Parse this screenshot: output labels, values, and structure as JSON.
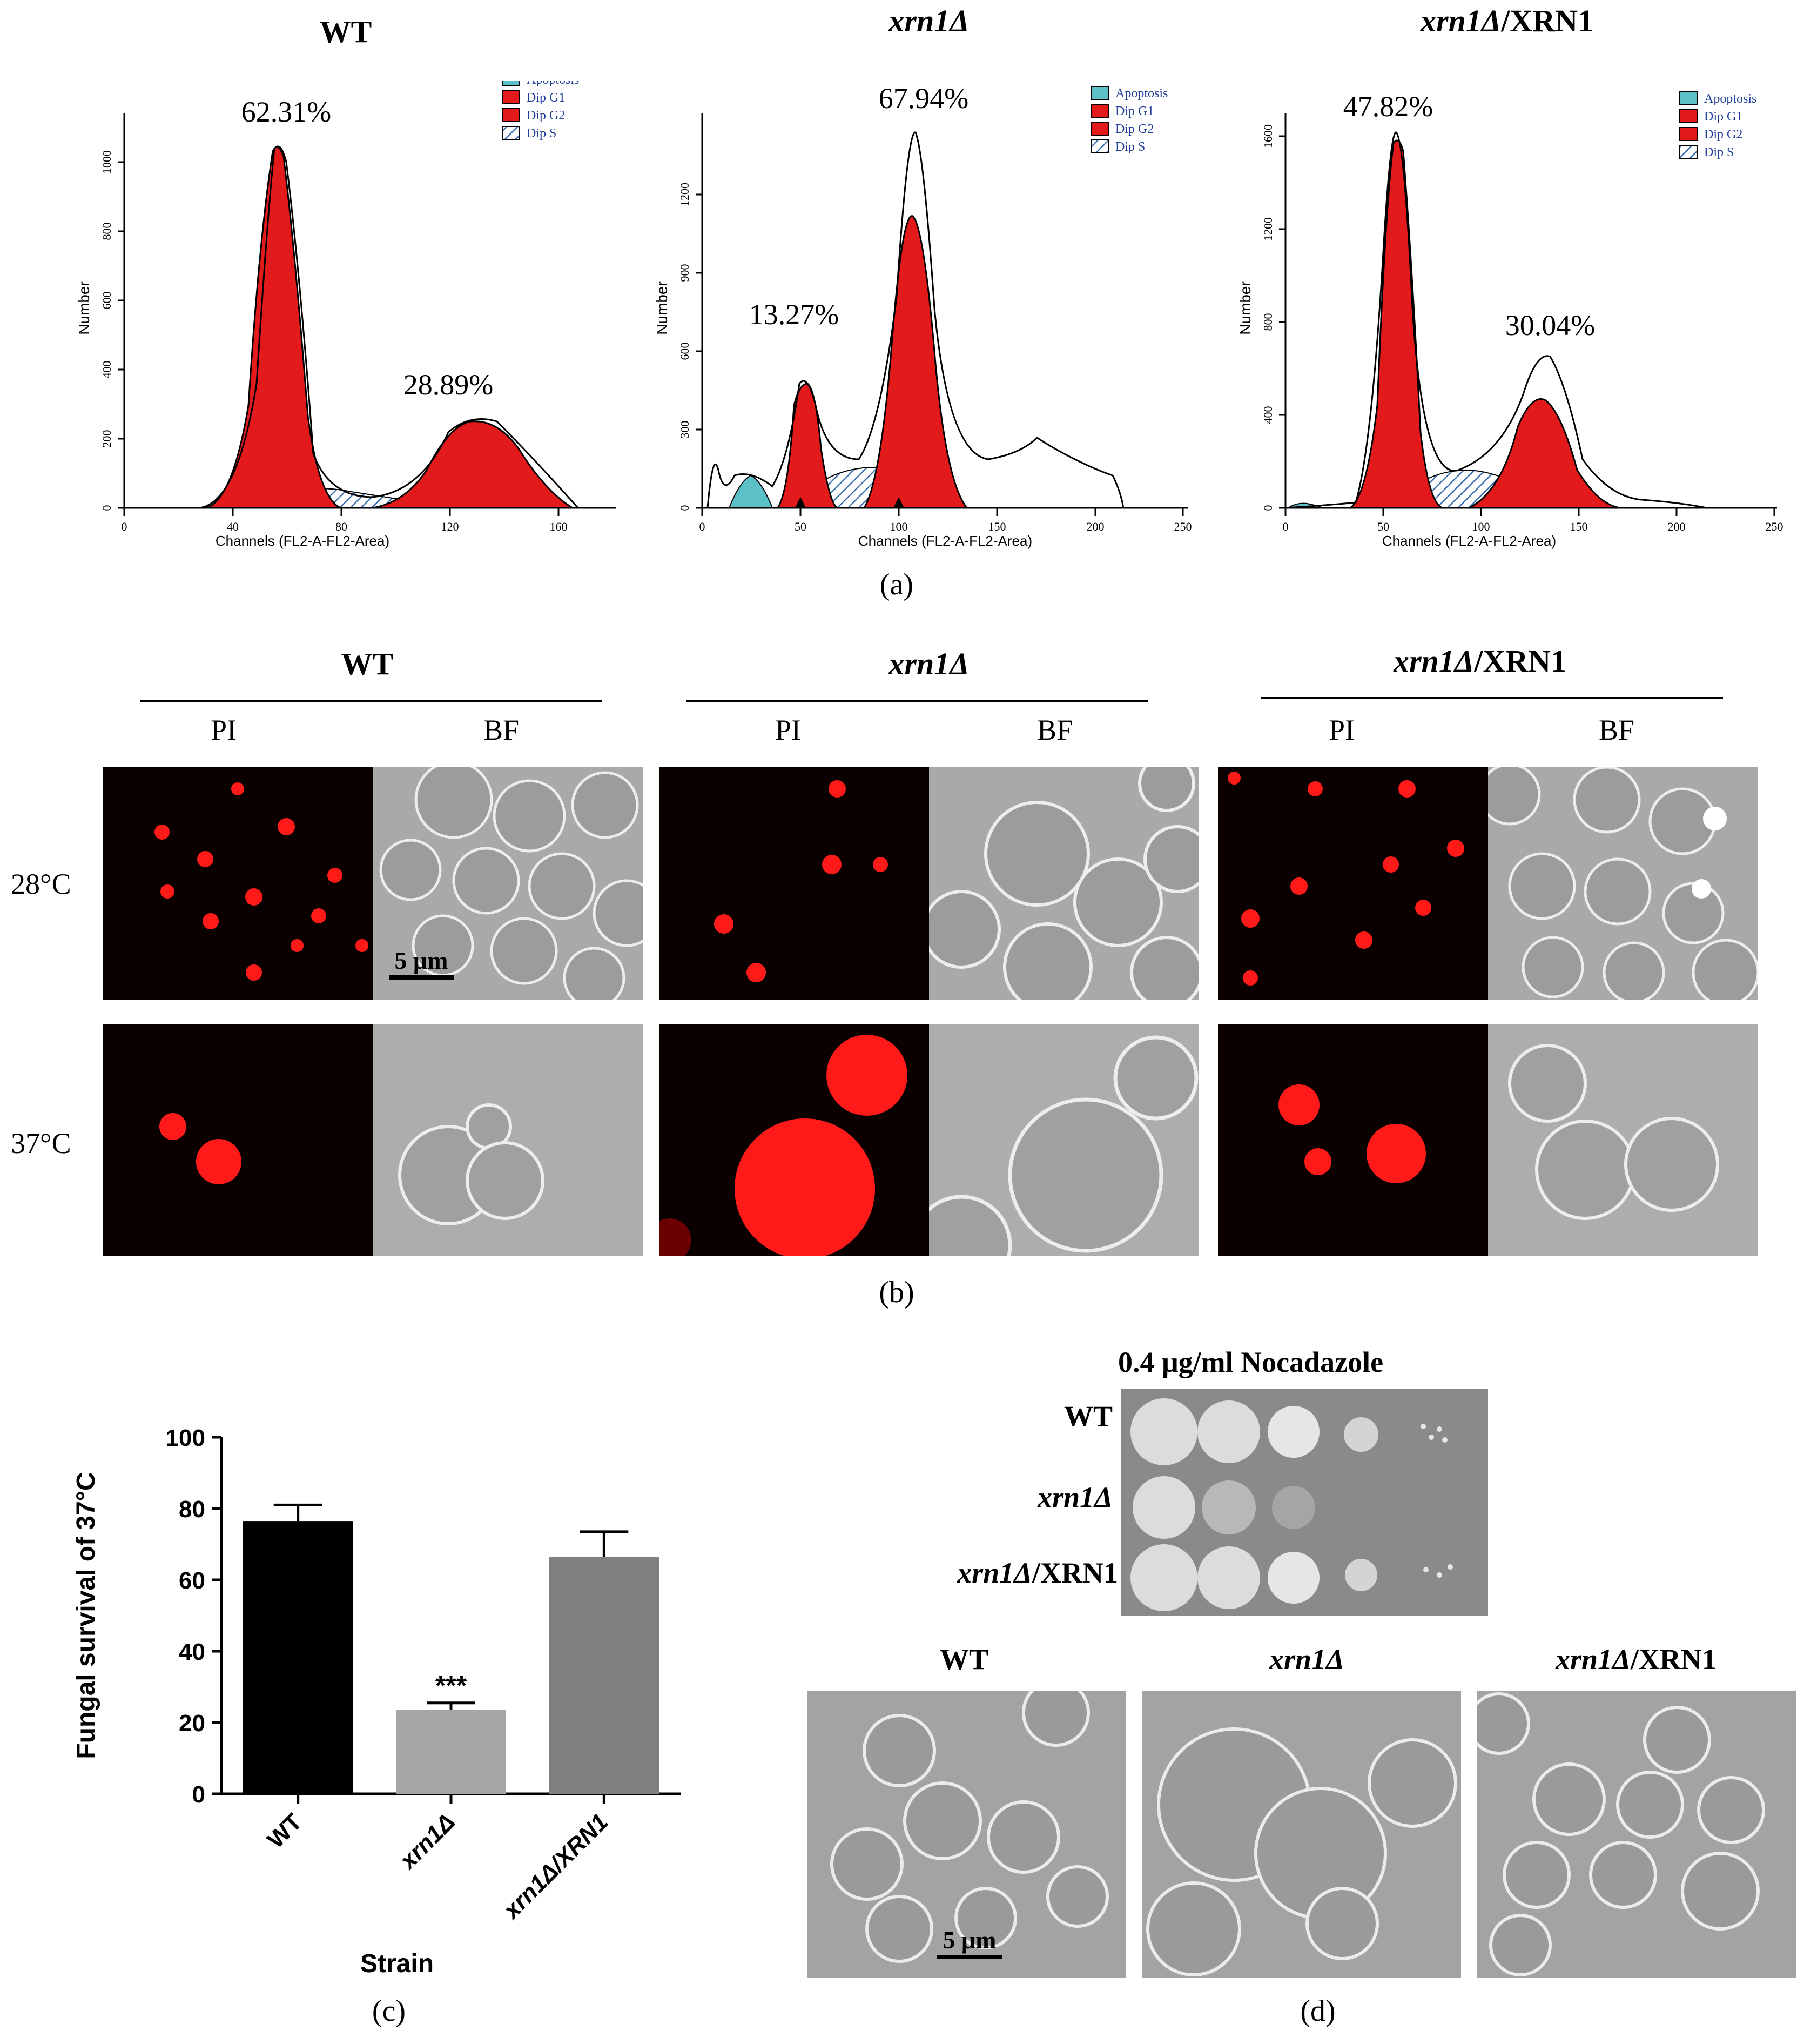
{
  "panel_a": {
    "caption": "(a)",
    "histograms": [
      {
        "title_main": "WT",
        "title_suffix": "",
        "peak1_pct": "62.31%",
        "peak2_pct": "28.89%",
        "xlabel": "Channels   (FL2-A-FL2-Area)",
        "ylabel": "Number",
        "xticks": [
          "0",
          "40",
          "80",
          "120",
          "160"
        ],
        "yticks": [
          "0",
          "200",
          "400",
          "600",
          "800",
          "1000"
        ],
        "legend": [
          "Apoptosis",
          "Dip G1",
          "Dip G2",
          "Dip S"
        ]
      },
      {
        "title_main": "xrn1Δ",
        "title_suffix": "",
        "peak1_pct": "13.27%",
        "peak2_pct": "67.94%",
        "xlabel": "Channels   (FL2-A-FL2-Area)",
        "ylabel": "Number",
        "xticks": [
          "0",
          "50",
          "100",
          "150",
          "200",
          "250"
        ],
        "yticks": [
          "0",
          "300",
          "600",
          "900",
          "1200"
        ],
        "legend": [
          "Apoptosis",
          "Dip G1",
          "Dip G2",
          "Dip S"
        ]
      },
      {
        "title_main": "xrn1Δ",
        "title_suffix": "/XRN1",
        "peak1_pct": "47.82%",
        "peak2_pct": "30.04%",
        "xlabel": "Channels   (FL2-A-FL2-Area)",
        "ylabel": "Number",
        "xticks": [
          "0",
          "50",
          "100",
          "150",
          "200",
          "250"
        ],
        "yticks": [
          "0",
          "400",
          "800",
          "1200",
          "1600"
        ],
        "legend": [
          "Apoptosis",
          "Dip G1",
          "Dip G2",
          "Dip S"
        ]
      }
    ]
  },
  "panel_b": {
    "caption": "(b)",
    "groups": [
      {
        "title_main": "WT",
        "title_suffix": ""
      },
      {
        "title_main": "xrn1Δ",
        "title_suffix": ""
      },
      {
        "title_main": "xrn1Δ",
        "title_suffix": "/XRN1"
      }
    ],
    "channel_labels": [
      "PI",
      "BF"
    ],
    "row_labels": [
      "28°C",
      "37°C"
    ],
    "scale_bar": "5 μm"
  },
  "panel_c": {
    "caption": "(c)",
    "significance": "***"
  },
  "chart_data": {
    "type": "bar",
    "categories": [
      "WT",
      "xrn1Δ",
      "xrn1Δ/XRN1"
    ],
    "values": [
      76.5,
      23.5,
      66.5
    ],
    "errors": [
      4.5,
      2.0,
      7.0
    ],
    "colors": [
      "#000000",
      "#a6a6a6",
      "#808080"
    ],
    "ylabel": "Fungal survival of 37°C",
    "xlabel": "Strain",
    "ylim": [
      0,
      100
    ],
    "yticks": [
      0,
      20,
      40,
      60,
      80,
      100
    ],
    "grid": false
  },
  "panel_d": {
    "caption": "(d)",
    "plate_title": "0.4 μg/ml Nocadazole",
    "plate_rows": [
      {
        "main": "WT",
        "suffix": ""
      },
      {
        "main": "xrn1Δ",
        "suffix": ""
      },
      {
        "main": "xrn1Δ",
        "suffix": "/XRN1"
      }
    ],
    "micro_titles": [
      {
        "main": "WT",
        "suffix": ""
      },
      {
        "main": "xrn1Δ",
        "suffix": ""
      },
      {
        "main": "xrn1Δ",
        "suffix": "/XRN1"
      }
    ],
    "scale_bar": "5 μm"
  }
}
